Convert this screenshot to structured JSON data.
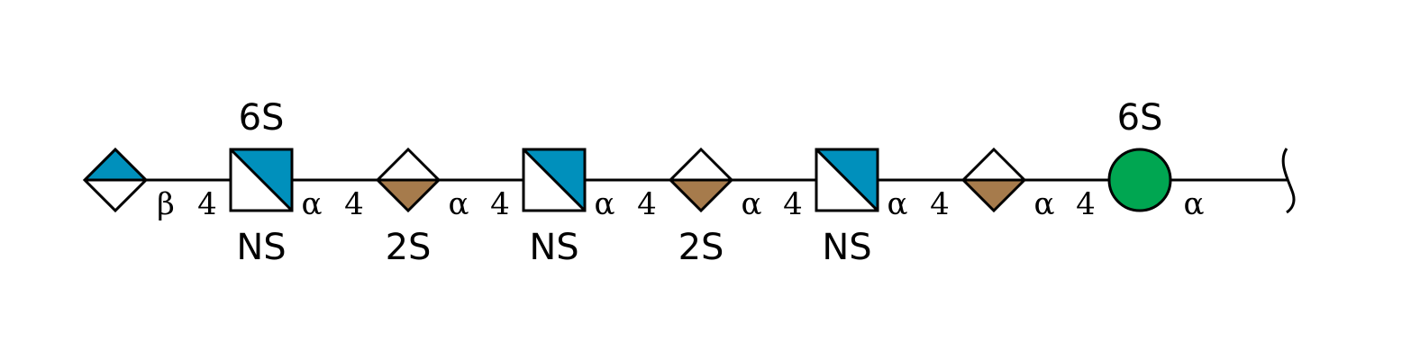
{
  "colors": {
    "blue": "#0090bc",
    "tan": "#a67b4c",
    "green": "#00a651",
    "white": "#ffffff",
    "line": "#000000"
  },
  "residues": [
    {
      "id": "r1",
      "shape": "diamond-top-filled",
      "color": "#0090bc",
      "above": "",
      "below": ""
    },
    {
      "id": "r2",
      "shape": "square-diagonal",
      "color": "#0090bc",
      "above": "6S",
      "below": "NS"
    },
    {
      "id": "r3",
      "shape": "diamond-bottom-filled",
      "color": "#a67b4c",
      "above": "",
      "below": "2S"
    },
    {
      "id": "r4",
      "shape": "square-diagonal",
      "color": "#0090bc",
      "above": "",
      "below": "NS"
    },
    {
      "id": "r5",
      "shape": "diamond-bottom-filled",
      "color": "#a67b4c",
      "above": "",
      "below": "2S"
    },
    {
      "id": "r6",
      "shape": "square-diagonal",
      "color": "#0090bc",
      "above": "",
      "below": "NS"
    },
    {
      "id": "r7",
      "shape": "diamond-bottom-filled",
      "color": "#a67b4c",
      "above": "",
      "below": ""
    },
    {
      "id": "r8",
      "shape": "circle",
      "color": "#00a651",
      "above": "6S",
      "below": ""
    }
  ],
  "linkages": [
    {
      "anomer": "β",
      "position": "4"
    },
    {
      "anomer": "α",
      "position": "4"
    },
    {
      "anomer": "α",
      "position": "4"
    },
    {
      "anomer": "α",
      "position": "4"
    },
    {
      "anomer": "α",
      "position": "4"
    },
    {
      "anomer": "α",
      "position": "4"
    },
    {
      "anomer": "α",
      "position": "4"
    }
  ],
  "reducing_end": {
    "anomer": "α"
  }
}
